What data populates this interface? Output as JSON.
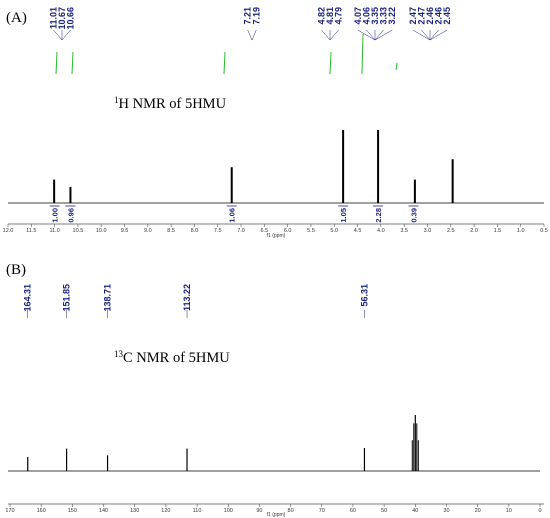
{
  "chart_data": [
    {
      "type": "line",
      "panel_label": "(A)",
      "title_sup": "1",
      "title": "H NMR of 5HMU",
      "xlabel": "f1 (ppm)",
      "xlim": [
        12.0,
        0.5
      ],
      "reversed_x": true,
      "x_ticks": [
        "12.0",
        "11.5",
        "11.0",
        "10.5",
        "10.0",
        "9.5",
        "9.0",
        "8.5",
        "8.0",
        "7.5",
        "7.0",
        "6.5",
        "6.0",
        "5.5",
        "5.0",
        "4.5",
        "4.0",
        "3.5",
        "3.0",
        "2.5",
        "2.0",
        "1.5",
        "1.0",
        "0.5"
      ],
      "peak_labels": [
        "11.01",
        "10.67",
        "10.66",
        "7.21",
        "7.19",
        "4.82",
        "4.81",
        "4.79",
        "4.07",
        "4.06",
        "3.35",
        "3.33",
        "3.22",
        "2.47",
        "2.47",
        "2.46",
        "2.46",
        "2.45"
      ],
      "integrals": [
        {
          "x": 11.0,
          "label": "1.00"
        },
        {
          "x": 10.66,
          "label": "0.96"
        },
        {
          "x": 7.2,
          "label": "1.06"
        },
        {
          "x": 4.81,
          "label": "1.05"
        },
        {
          "x": 4.06,
          "label": "2.28"
        },
        {
          "x": 3.3,
          "label": "0.39"
        }
      ],
      "peaks": [
        {
          "x": 11.01,
          "height": 0.32
        },
        {
          "x": 10.66,
          "height": 0.22
        },
        {
          "x": 7.2,
          "height": 0.49
        },
        {
          "x": 4.81,
          "height": 1.0
        },
        {
          "x": 4.06,
          "height": 1.0
        },
        {
          "x": 3.27,
          "height": 0.32
        },
        {
          "x": 2.46,
          "height": 0.6
        }
      ]
    },
    {
      "type": "line",
      "panel_label": "(B)",
      "title_sup": "13",
      "title": "C NMR of 5HMU",
      "xlabel": "f1 (ppm)",
      "xlim": [
        170,
        0
      ],
      "reversed_x": true,
      "x_ticks": [
        "170",
        "160",
        "150",
        "140",
        "130",
        "120",
        "110",
        "100",
        "90",
        "80",
        "70",
        "60",
        "50",
        "40",
        "30",
        "20",
        "10",
        "0"
      ],
      "peak_labels": [
        "164.31",
        "151.85",
        "138.71",
        "113.22",
        "56.31"
      ],
      "peaks": [
        {
          "x": 164.31,
          "height": 0.25
        },
        {
          "x": 151.85,
          "height": 0.4
        },
        {
          "x": 138.71,
          "height": 0.28
        },
        {
          "x": 113.22,
          "height": 0.4
        },
        {
          "x": 56.31,
          "height": 0.41
        },
        {
          "x": 40.0,
          "height": 1.0
        }
      ]
    }
  ]
}
